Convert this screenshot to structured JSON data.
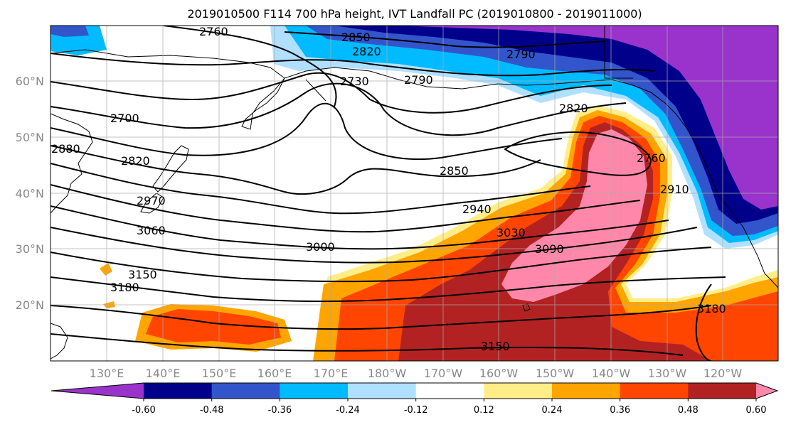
{
  "title": "2019010500 F114 700 hPa height, IVT Landfall PC (2019010800 - 2019011000)",
  "map": {
    "lat_labels": [
      "60°N",
      "50°N",
      "40°N",
      "30°N",
      "20°N"
    ],
    "lon_labels": [
      "130°E",
      "140°E",
      "150°E",
      "160°E",
      "170°E",
      "180°W",
      "170°W",
      "160°W",
      "150°W",
      "140°W",
      "130°W",
      "120°W"
    ],
    "height_contour_labels": [
      "2760",
      "2850",
      "2820",
      "2790",
      "2730",
      "2790",
      "2820",
      "2700",
      "2880",
      "2820",
      "2970",
      "3060",
      "2850",
      "2940",
      "3030",
      "3000",
      "3090",
      "3150",
      "3180",
      "2760",
      "2910",
      "3150",
      "3180"
    ]
  },
  "colorbar": {
    "colors": [
      "#9933cc",
      "#00008b",
      "#3355cc",
      "#00bbff",
      "#b0e0ff",
      "#ffffff",
      "#ffee88",
      "#ffa500",
      "#ff4500",
      "#b22222",
      "#ff88aa"
    ],
    "tick_labels": [
      "-0.60",
      "-0.48",
      "-0.36",
      "-0.24",
      "-0.12",
      "0.12",
      "0.24",
      "0.36",
      "0.48",
      "0.60"
    ]
  }
}
